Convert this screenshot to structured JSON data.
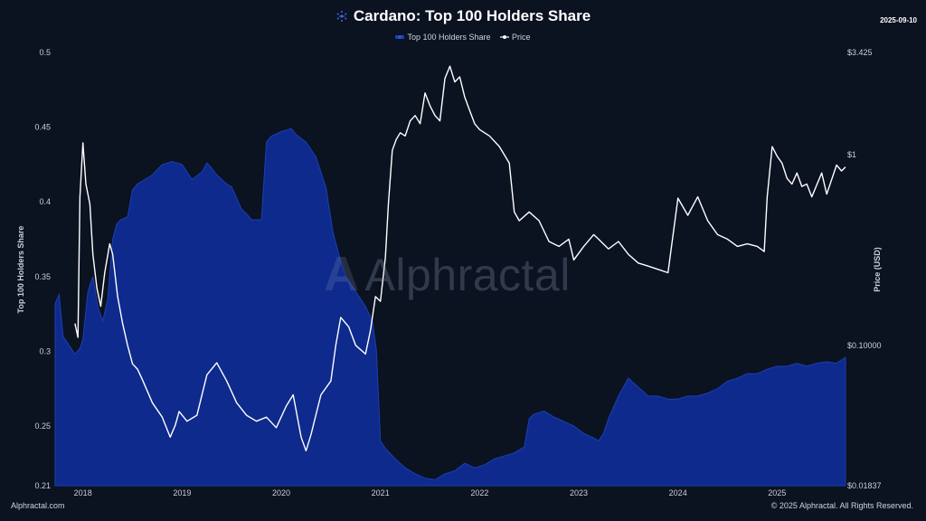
{
  "title": "Cardano: Top 100 Holders Share",
  "date": "2025-09-10",
  "legend": {
    "share_label": "Top 100 Holders Share",
    "price_label": "Price"
  },
  "footer": {
    "left": "Alphractal.com",
    "right": "© 2025 Alphractal. All Rights Reserved."
  },
  "watermark": "Alphractal",
  "colors": {
    "background": "#0b1220",
    "share_fill": "#0e2a8c",
    "share_line": "#1b3fb3",
    "price_line": "#ffffff",
    "text": "#c9cfda"
  },
  "chart_data": {
    "type": "area",
    "xlabel": "",
    "x_ticks": [
      "2018",
      "2019",
      "2020",
      "2021",
      "2022",
      "2023",
      "2024",
      "2025"
    ],
    "y_left": {
      "label": "Top 100 Holders Share",
      "range": [
        0.21,
        0.5
      ],
      "ticks": [
        "0.5",
        "0.45",
        "0.4",
        "0.35",
        "0.3",
        "0.25",
        "0.21"
      ]
    },
    "y_right": {
      "label": "Price (USD)",
      "scale": "log",
      "range": [
        0.01837,
        3.425
      ],
      "ticks": [
        "$3.425",
        "$1",
        "$0.10000",
        "$0.01837"
      ]
    },
    "grid": false,
    "legend_position": "top-center",
    "series": [
      {
        "name": "Top 100 Holders Share",
        "type": "area",
        "axis": "left",
        "x": [
          2017.72,
          2017.76,
          2017.8,
          2017.86,
          2017.92,
          2017.97,
          2018.0,
          2018.05,
          2018.1,
          2018.15,
          2018.2,
          2018.25,
          2018.3,
          2018.34,
          2018.38,
          2018.45,
          2018.5,
          2018.55,
          2018.6,
          2018.7,
          2018.8,
          2018.9,
          2018.95,
          2019.0,
          2019.1,
          2019.2,
          2019.25,
          2019.28,
          2019.35,
          2019.45,
          2019.5,
          2019.6,
          2019.65,
          2019.7,
          2019.75,
          2019.8,
          2019.85,
          2019.9,
          2020.0,
          2020.1,
          2020.15,
          2020.25,
          2020.35,
          2020.45,
          2020.52,
          2020.6,
          2020.65,
          2020.75,
          2020.85,
          2020.92,
          2020.96,
          2021.0,
          2021.05,
          2021.15,
          2021.25,
          2021.35,
          2021.45,
          2021.55,
          2021.65,
          2021.75,
          2021.85,
          2021.95,
          2022.05,
          2022.15,
          2022.25,
          2022.35,
          2022.45,
          2022.5,
          2022.55,
          2022.65,
          2022.75,
          2022.85,
          2022.95,
          2023.05,
          2023.15,
          2023.2,
          2023.25,
          2023.3,
          2023.4,
          2023.5,
          2023.6,
          2023.7,
          2023.8,
          2023.9,
          2024.0,
          2024.1,
          2024.2,
          2024.3,
          2024.4,
          2024.5,
          2024.6,
          2024.7,
          2024.8,
          2024.9,
          2025.0,
          2025.1,
          2025.2,
          2025.3,
          2025.4,
          2025.5,
          2025.6,
          2025.69
        ],
        "values": [
          0.332,
          0.338,
          0.31,
          0.304,
          0.298,
          0.302,
          0.308,
          0.34,
          0.35,
          0.33,
          0.32,
          0.335,
          0.375,
          0.385,
          0.388,
          0.39,
          0.408,
          0.412,
          0.414,
          0.418,
          0.425,
          0.427,
          0.426,
          0.425,
          0.415,
          0.42,
          0.426,
          0.424,
          0.418,
          0.412,
          0.41,
          0.395,
          0.392,
          0.388,
          0.388,
          0.388,
          0.44,
          0.444,
          0.447,
          0.449,
          0.445,
          0.44,
          0.43,
          0.41,
          0.38,
          0.36,
          0.35,
          0.34,
          0.33,
          0.32,
          0.3,
          0.24,
          0.235,
          0.228,
          0.222,
          0.218,
          0.215,
          0.214,
          0.218,
          0.22,
          0.225,
          0.222,
          0.224,
          0.228,
          0.23,
          0.232,
          0.236,
          0.255,
          0.258,
          0.26,
          0.256,
          0.253,
          0.25,
          0.245,
          0.242,
          0.24,
          0.245,
          0.255,
          0.27,
          0.282,
          0.276,
          0.27,
          0.27,
          0.268,
          0.268,
          0.27,
          0.27,
          0.272,
          0.275,
          0.28,
          0.282,
          0.285,
          0.285,
          0.288,
          0.29,
          0.29,
          0.292,
          0.29,
          0.292,
          0.293,
          0.292,
          0.296
        ]
      },
      {
        "name": "Price",
        "type": "line",
        "axis": "right",
        "x": [
          2017.92,
          2017.95,
          2017.97,
          2018.0,
          2018.03,
          2018.07,
          2018.1,
          2018.14,
          2018.18,
          2018.22,
          2018.27,
          2018.3,
          2018.35,
          2018.4,
          2018.45,
          2018.5,
          2018.55,
          2018.6,
          2018.7,
          2018.8,
          2018.88,
          2018.93,
          2018.97,
          2019.05,
          2019.15,
          2019.25,
          2019.35,
          2019.45,
          2019.55,
          2019.65,
          2019.75,
          2019.85,
          2019.95,
          2020.05,
          2020.12,
          2020.2,
          2020.25,
          2020.3,
          2020.4,
          2020.5,
          2020.55,
          2020.6,
          2020.68,
          2020.75,
          2020.85,
          2020.9,
          2020.95,
          2021.0,
          2021.05,
          2021.08,
          2021.12,
          2021.16,
          2021.2,
          2021.25,
          2021.3,
          2021.35,
          2021.4,
          2021.45,
          2021.5,
          2021.55,
          2021.6,
          2021.65,
          2021.7,
          2021.75,
          2021.8,
          2021.85,
          2021.9,
          2021.95,
          2022.0,
          2022.1,
          2022.2,
          2022.3,
          2022.35,
          2022.4,
          2022.5,
          2022.6,
          2022.7,
          2022.8,
          2022.9,
          2022.95,
          2023.05,
          2023.15,
          2023.2,
          2023.3,
          2023.4,
          2023.5,
          2023.6,
          2023.7,
          2023.8,
          2023.9,
          2024.0,
          2024.1,
          2024.2,
          2024.3,
          2024.4,
          2024.5,
          2024.6,
          2024.7,
          2024.8,
          2024.87,
          2024.9,
          2024.95,
          2025.0,
          2025.05,
          2025.1,
          2025.15,
          2025.2,
          2025.25,
          2025.3,
          2025.35,
          2025.45,
          2025.5,
          2025.6,
          2025.65,
          2025.69
        ],
        "values": [
          0.13,
          0.11,
          0.6,
          1.15,
          0.7,
          0.55,
          0.3,
          0.2,
          0.16,
          0.24,
          0.34,
          0.3,
          0.18,
          0.13,
          0.1,
          0.08,
          0.075,
          0.066,
          0.05,
          0.042,
          0.033,
          0.038,
          0.045,
          0.04,
          0.043,
          0.07,
          0.081,
          0.065,
          0.05,
          0.043,
          0.04,
          0.042,
          0.037,
          0.048,
          0.055,
          0.033,
          0.028,
          0.034,
          0.055,
          0.065,
          0.1,
          0.14,
          0.125,
          0.1,
          0.09,
          0.12,
          0.18,
          0.17,
          0.29,
          0.55,
          1.05,
          1.2,
          1.3,
          1.25,
          1.5,
          1.6,
          1.45,
          2.1,
          1.8,
          1.6,
          1.5,
          2.5,
          2.9,
          2.4,
          2.55,
          2.0,
          1.7,
          1.45,
          1.35,
          1.25,
          1.1,
          0.9,
          0.5,
          0.45,
          0.5,
          0.45,
          0.35,
          0.33,
          0.36,
          0.28,
          0.33,
          0.38,
          0.36,
          0.32,
          0.35,
          0.3,
          0.27,
          0.26,
          0.25,
          0.24,
          0.59,
          0.48,
          0.6,
          0.45,
          0.38,
          0.36,
          0.33,
          0.34,
          0.33,
          0.31,
          0.6,
          1.1,
          0.98,
          0.9,
          0.75,
          0.7,
          0.8,
          0.68,
          0.7,
          0.6,
          0.8,
          0.62,
          0.88,
          0.82,
          0.86
        ]
      }
    ]
  }
}
